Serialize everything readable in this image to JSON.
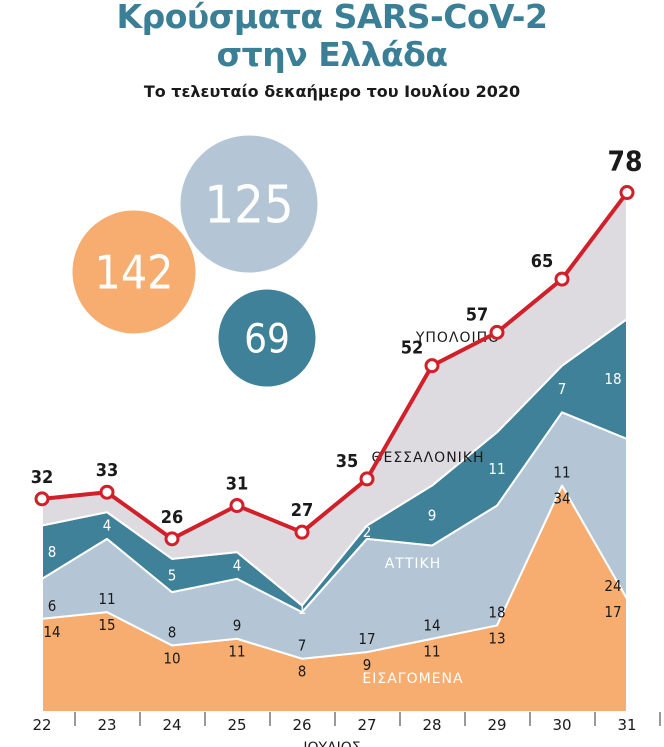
{
  "title_line1": "Κρούσματα SARS-CoV-2",
  "title_line2": "στην Ελλάδα",
  "subtitle": "Το τελευταίο δεκαήμερο του Ιουλίου 2020",
  "totals_bubbles": [
    {
      "value": "142",
      "color": "#f6ad6f"
    },
    {
      "value": "125",
      "color": "#b4c6d6"
    },
    {
      "value": "69",
      "color": "#3f8198"
    }
  ],
  "colors": {
    "imported": "#f6ad6f",
    "attica": "#b4c6d6",
    "thessaloniki": "#3f8198",
    "rest": "#dedbe0",
    "total_line": "#d0202a"
  },
  "chart_data": {
    "type": "area",
    "stacked": true,
    "x": [
      "22",
      "23",
      "24",
      "25",
      "26",
      "27",
      "28",
      "29",
      "30",
      "31"
    ],
    "xlabel": "ΙΟΥΛΙΟΣ",
    "series": [
      {
        "name": "ΕΙΣΑΓΟΜΕΝΑ",
        "key": "imported",
        "values": [
          14,
          15,
          10,
          11,
          8,
          9,
          11,
          13,
          34,
          17
        ]
      },
      {
        "name": "ΑΤΤΙΚΗ",
        "key": "attica",
        "values": [
          6,
          11,
          8,
          9,
          7,
          17,
          14,
          18,
          11,
          24
        ]
      },
      {
        "name": "ΘΕΣΣΑΛΟΝΙΚΗ",
        "key": "thessaloniki",
        "values": [
          8,
          4,
          5,
          4,
          1,
          2,
          9,
          11,
          7,
          18
        ]
      },
      {
        "name": "ΥΠΟΛΟΙΠΟ",
        "key": "rest",
        "values": [
          4,
          3,
          3,
          7,
          11,
          7,
          18,
          15,
          13,
          19
        ]
      }
    ],
    "total": [
      32,
      33,
      26,
      31,
      27,
      35,
      52,
      57,
      65,
      78
    ]
  }
}
